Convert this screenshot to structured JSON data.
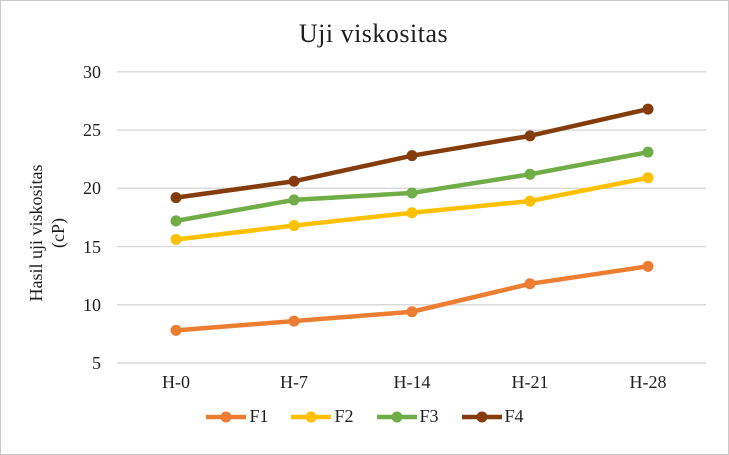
{
  "window": {
    "background": "#ffffff",
    "border_color": "#c9c9c9"
  },
  "chart_data": {
    "type": "line",
    "title": "Uji viskositas",
    "ylabel_line1": "Hasil uji viskositas",
    "ylabel_line2": "(cP)",
    "xlabel": "",
    "categories": [
      "H-0",
      "H-7",
      "H-14",
      "H-21",
      "H-28"
    ],
    "series": [
      {
        "name": "F1",
        "color": "#ED7D31",
        "values": [
          7.8,
          8.6,
          9.4,
          11.8,
          13.3
        ]
      },
      {
        "name": "F2",
        "color": "#FFC000",
        "values": [
          15.6,
          16.8,
          17.9,
          18.9,
          20.9
        ]
      },
      {
        "name": "F3",
        "color": "#70AD47",
        "values": [
          17.2,
          19.0,
          19.6,
          21.2,
          23.1
        ]
      },
      {
        "name": "F4",
        "color": "#843C0C",
        "values": [
          19.2,
          20.6,
          22.8,
          24.5,
          26.8
        ]
      }
    ],
    "ylim": [
      5,
      30
    ],
    "yticks": [
      5,
      10,
      15,
      20,
      25,
      30
    ],
    "grid": true,
    "gridline_color": "#D9D9D9",
    "text_color": "#1f1f1f",
    "legend_position": "bottom"
  }
}
